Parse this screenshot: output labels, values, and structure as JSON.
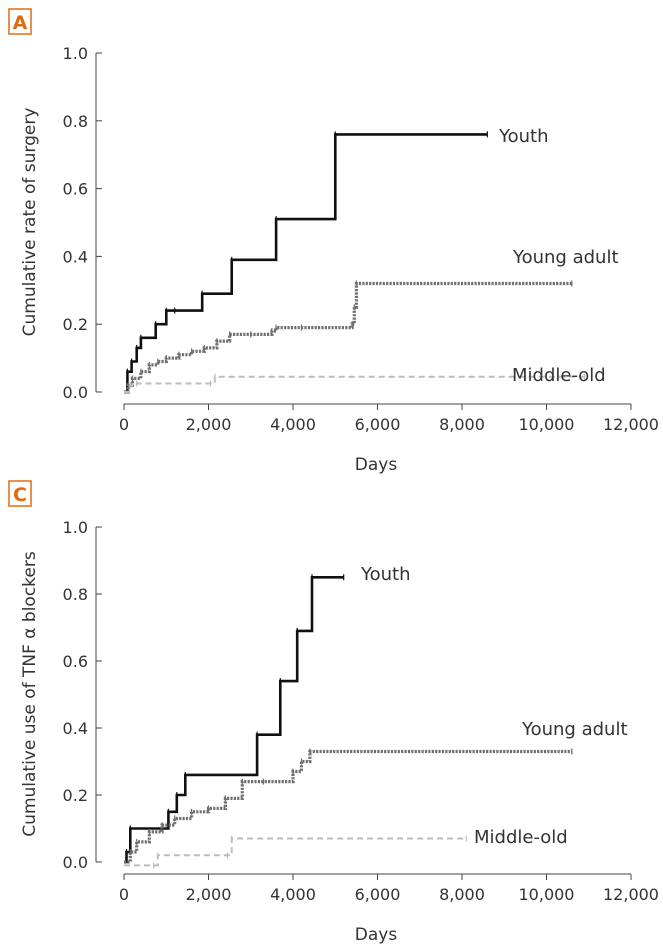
{
  "chart_data": [
    {
      "panel": "A",
      "type": "line",
      "xlabel": "Days",
      "ylabel": "Cumulative rate of surgery",
      "xlim": [
        0,
        12000
      ],
      "ylim": [
        0,
        1.0
      ],
      "xticks": [
        "0",
        "2,000",
        "4,000",
        "6,000",
        "8,000",
        "10,000",
        "12,000"
      ],
      "yticks": [
        "0.0",
        "0.2",
        "0.4",
        "0.6",
        "0.8",
        "1.0"
      ],
      "series": [
        {
          "name": "Youth",
          "color": "#111111",
          "style": "solid",
          "x": [
            0,
            80,
            180,
            300,
            400,
            750,
            1000,
            1200,
            1850,
            2550,
            3600,
            5000,
            8600
          ],
          "y": [
            0.0,
            0.06,
            0.09,
            0.13,
            0.16,
            0.2,
            0.24,
            0.24,
            0.29,
            0.39,
            0.51,
            0.76,
            0.76
          ]
        },
        {
          "name": "Young adult",
          "color": "#707070",
          "style": "dotted",
          "x": [
            0,
            100,
            200,
            400,
            600,
            800,
            1000,
            1300,
            1600,
            1900,
            2200,
            2500,
            3000,
            3500,
            3600,
            4200,
            5400,
            5450,
            5500,
            10600
          ],
          "y": [
            0.0,
            0.02,
            0.04,
            0.06,
            0.08,
            0.09,
            0.1,
            0.11,
            0.12,
            0.13,
            0.15,
            0.17,
            0.17,
            0.18,
            0.19,
            0.19,
            0.2,
            0.25,
            0.32,
            0.32
          ]
        },
        {
          "name": "Middle-old",
          "color": "#bdbdbd",
          "style": "dashed",
          "x": [
            0,
            150,
            300,
            2050,
            2150,
            10900
          ],
          "y": [
            0.0,
            0.02,
            0.025,
            0.025,
            0.045,
            0.045
          ]
        }
      ]
    },
    {
      "panel": "C",
      "type": "line",
      "xlabel": "Days",
      "ylabel": "Cumulative use of TNF α blockers",
      "xlim": [
        0,
        12000
      ],
      "ylim": [
        0,
        0.9
      ],
      "xticks": [
        "0",
        "2,000",
        "4,000",
        "6,000",
        "8,000",
        "10,000",
        "12,000"
      ],
      "yticks": [
        "0.0",
        "0.2",
        "0.4",
        "0.6",
        "0.8",
        "1.0"
      ],
      "series": [
        {
          "name": "Youth",
          "color": "#111111",
          "style": "solid",
          "x": [
            0,
            60,
            150,
            1050,
            1250,
            1450,
            3150,
            3700,
            4100,
            4450,
            5200
          ],
          "y": [
            0.0,
            0.03,
            0.1,
            0.15,
            0.2,
            0.26,
            0.38,
            0.54,
            0.69,
            0.85,
            0.85
          ]
        },
        {
          "name": "Young adult",
          "color": "#707070",
          "style": "dotted",
          "x": [
            0,
            150,
            300,
            600,
            900,
            1200,
            1600,
            2000,
            2400,
            2800,
            3300,
            4000,
            4200,
            4400,
            10600
          ],
          "y": [
            0.0,
            0.03,
            0.06,
            0.09,
            0.11,
            0.13,
            0.15,
            0.16,
            0.19,
            0.24,
            0.24,
            0.27,
            0.3,
            0.33,
            0.33
          ]
        },
        {
          "name": "Middle-old",
          "color": "#bdbdbd",
          "style": "dashed",
          "x": [
            0,
            700,
            800,
            2450,
            2550,
            8100
          ],
          "y": [
            -0.01,
            -0.01,
            0.02,
            0.02,
            0.07,
            0.07
          ]
        }
      ]
    }
  ]
}
